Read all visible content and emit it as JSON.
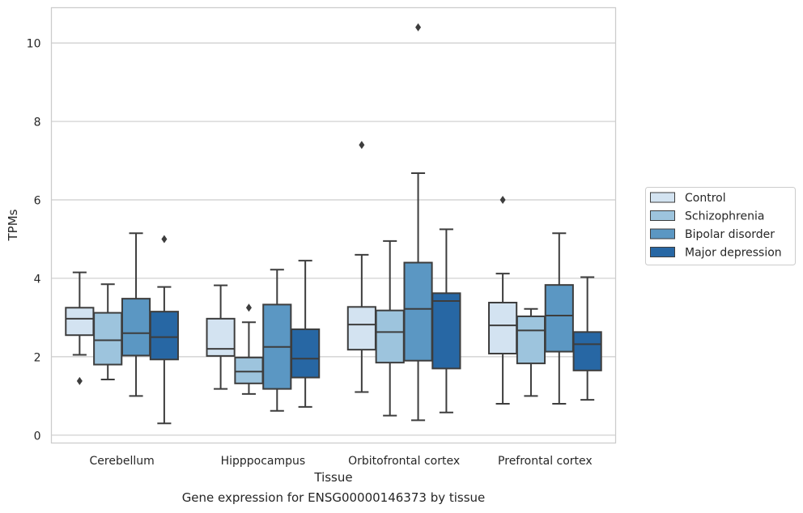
{
  "caption": "Gene expression for ENSG00000146373 by tissue",
  "chart_data": {
    "type": "boxplot",
    "xlabel": "Tissue",
    "ylabel": "TPMs",
    "ylim": [
      -0.2,
      10.9
    ],
    "yticks": [
      0,
      2,
      4,
      6,
      8,
      10
    ],
    "grid": "horizontal",
    "legend_position": "right",
    "categories": [
      "Cerebellum",
      "Hipppocampus",
      "Orbitofrontal cortex",
      "Prefrontal cortex"
    ],
    "series": [
      {
        "name": "Control",
        "color": "#d3e3f1",
        "boxes": [
          {
            "whislo": 2.05,
            "q1": 2.55,
            "med": 2.97,
            "q3": 3.25,
            "whishi": 4.15,
            "fliers": [
              1.38
            ]
          },
          {
            "whislo": 1.18,
            "q1": 2.02,
            "med": 2.2,
            "q3": 2.97,
            "whishi": 3.82,
            "fliers": []
          },
          {
            "whislo": 1.1,
            "q1": 2.18,
            "med": 2.82,
            "q3": 3.27,
            "whishi": 4.6,
            "fliers": [
              7.4
            ]
          },
          {
            "whislo": 0.8,
            "q1": 2.08,
            "med": 2.8,
            "q3": 3.38,
            "whishi": 4.12,
            "fliers": [
              6.0
            ]
          }
        ]
      },
      {
        "name": "Schizophrenia",
        "color": "#9dc4dd",
        "boxes": [
          {
            "whislo": 1.42,
            "q1": 1.8,
            "med": 2.42,
            "q3": 3.12,
            "whishi": 3.85,
            "fliers": []
          },
          {
            "whislo": 1.05,
            "q1": 1.32,
            "med": 1.62,
            "q3": 1.98,
            "whishi": 2.88,
            "fliers": [
              3.25
            ]
          },
          {
            "whislo": 0.5,
            "q1": 1.85,
            "med": 2.63,
            "q3": 3.18,
            "whishi": 4.95,
            "fliers": []
          },
          {
            "whislo": 1.0,
            "q1": 1.83,
            "med": 2.67,
            "q3": 3.03,
            "whishi": 3.22,
            "fliers": []
          }
        ]
      },
      {
        "name": "Bipolar disorder",
        "color": "#5b97c3",
        "boxes": [
          {
            "whislo": 1.0,
            "q1": 2.03,
            "med": 2.6,
            "q3": 3.48,
            "whishi": 5.15,
            "fliers": []
          },
          {
            "whislo": 0.62,
            "q1": 1.18,
            "med": 2.25,
            "q3": 3.33,
            "whishi": 4.22,
            "fliers": []
          },
          {
            "whislo": 0.38,
            "q1": 1.9,
            "med": 3.22,
            "q3": 4.4,
            "whishi": 6.68,
            "fliers": [
              10.4
            ]
          },
          {
            "whislo": 0.8,
            "q1": 2.13,
            "med": 3.05,
            "q3": 3.83,
            "whishi": 5.15,
            "fliers": []
          }
        ]
      },
      {
        "name": "Major depression",
        "color": "#2767a4",
        "boxes": [
          {
            "whislo": 0.3,
            "q1": 1.93,
            "med": 2.5,
            "q3": 3.15,
            "whishi": 3.78,
            "fliers": [
              5.0
            ]
          },
          {
            "whislo": 0.72,
            "q1": 1.47,
            "med": 1.95,
            "q3": 2.7,
            "whishi": 4.45,
            "fliers": []
          },
          {
            "whislo": 0.58,
            "q1": 1.7,
            "med": 3.42,
            "q3": 3.62,
            "whishi": 5.25,
            "fliers": []
          },
          {
            "whislo": 0.9,
            "q1": 1.65,
            "med": 2.32,
            "q3": 2.63,
            "whishi": 4.03,
            "fliers": []
          }
        ]
      }
    ]
  }
}
